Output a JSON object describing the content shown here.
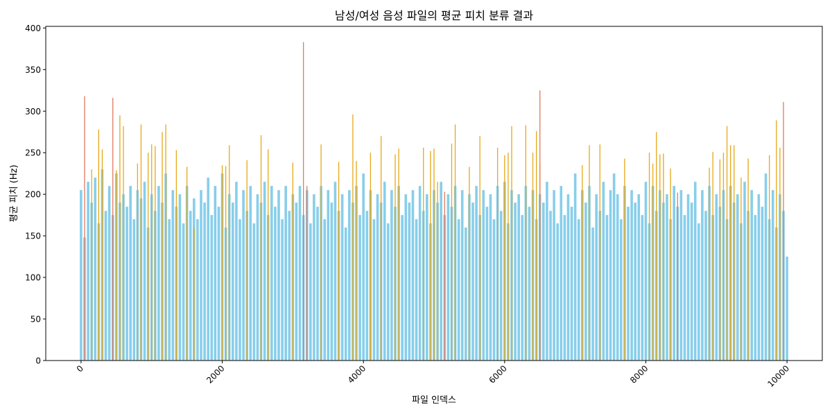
{
  "chart_data": {
    "type": "bar",
    "title": "남성/여성 음성 파일의 평균 피치 분류 결과",
    "xlabel": "파일 인덱스",
    "ylabel": "평균 피치 (Hz)",
    "xlim": [
      -500,
      10500
    ],
    "ylim": [
      0,
      402
    ],
    "x_ticks": [
      0,
      2000,
      4000,
      6000,
      8000,
      10000
    ],
    "x_tick_labels": [
      "0",
      "2000",
      "4000",
      "6000",
      "8000",
      "10000"
    ],
    "y_ticks": [
      0,
      50,
      100,
      150,
      200,
      250,
      300,
      350,
      400
    ],
    "y_tick_labels": [
      "0",
      "50",
      "100",
      "150",
      "200",
      "250",
      "300",
      "350",
      "400"
    ],
    "grid": false,
    "legend": "none",
    "series": [
      {
        "color": "#87ceeb",
        "x": [
          0,
          50,
          100,
          150,
          200,
          250,
          300,
          350,
          400,
          450,
          500,
          550,
          600,
          650,
          700,
          750,
          800,
          850,
          900,
          950,
          1000,
          1050,
          1100,
          1150,
          1200,
          1250,
          1300,
          1350,
          1400,
          1450,
          1500,
          1550,
          1600,
          1650,
          1700,
          1750,
          1800,
          1850,
          1900,
          1950,
          2000,
          2050,
          2100,
          2150,
          2200,
          2250,
          2300,
          2350,
          2400,
          2450,
          2500,
          2550,
          2600,
          2650,
          2700,
          2750,
          2800,
          2850,
          2900,
          2950,
          3000,
          3050,
          3100,
          3150,
          3200,
          3250,
          3300,
          3350,
          3400,
          3450,
          3500,
          3550,
          3600,
          3650,
          3700,
          3750,
          3800,
          3850,
          3900,
          3950,
          4000,
          4050,
          4100,
          4150,
          4200,
          4250,
          4300,
          4350,
          4400,
          4450,
          4500,
          4550,
          4600,
          4650,
          4700,
          4750,
          4800,
          4850,
          4900,
          4950,
          5000,
          5050,
          5100,
          5150,
          5200,
          5250,
          5300,
          5350,
          5400,
          5450,
          5500,
          5550,
          5600,
          5650,
          5700,
          5750,
          5800,
          5850,
          5900,
          5950,
          6000,
          6050,
          6100,
          6150,
          6200,
          6250,
          6300,
          6350,
          6400,
          6450,
          6500,
          6550,
          6600,
          6650,
          6700,
          6750,
          6800,
          6850,
          6900,
          6950,
          7000,
          7050,
          7100,
          7150,
          7200,
          7250,
          7300,
          7350,
          7400,
          7450,
          7500,
          7550,
          7600,
          7650,
          7700,
          7750,
          7800,
          7850,
          7900,
          7950,
          8000,
          8050,
          8100,
          8150,
          8200,
          8250,
          8300,
          8350,
          8400,
          8450,
          8500,
          8550,
          8600,
          8650,
          8700,
          8750,
          8800,
          8850,
          8900,
          8950,
          9000,
          9050,
          9100,
          9150,
          9200,
          9250,
          9300,
          9350,
          9400,
          9450,
          9500,
          9550,
          9600,
          9650,
          9700,
          9750,
          9800,
          9850,
          9900,
          9950,
          10000
        ],
        "values": [
          205,
          148,
          215,
          190,
          220,
          165,
          230,
          180,
          210,
          175,
          225,
          190,
          200,
          185,
          210,
          170,
          205,
          195,
          215,
          160,
          200,
          180,
          210,
          190,
          225,
          170,
          205,
          185,
          200,
          165,
          210,
          180,
          195,
          170,
          205,
          190,
          220,
          175,
          210,
          185,
          225,
          160,
          200,
          190,
          215,
          170,
          205,
          180,
          210,
          165,
          200,
          190,
          215,
          175,
          210,
          185,
          205,
          170,
          210,
          180,
          200,
          190,
          210,
          175,
          205,
          165,
          200,
          185,
          210,
          170,
          205,
          190,
          215,
          180,
          200,
          160,
          205,
          190,
          210,
          175,
          225,
          180,
          205,
          170,
          200,
          190,
          215,
          165,
          205,
          185,
          210,
          175,
          200,
          190,
          205,
          170,
          210,
          180,
          200,
          165,
          205,
          190,
          215,
          175,
          200,
          185,
          210,
          170,
          205,
          160,
          200,
          190,
          210,
          175,
          205,
          185,
          200,
          170,
          210,
          180,
          215,
          165,
          205,
          190,
          200,
          175,
          210,
          185,
          205,
          170,
          200,
          190,
          215,
          180,
          205,
          165,
          210,
          175,
          200,
          185,
          225,
          170,
          205,
          190,
          210,
          160,
          200,
          180,
          215,
          175,
          205,
          225,
          200,
          170,
          210,
          185,
          205,
          190,
          200,
          175,
          215,
          165,
          210,
          180,
          205,
          190,
          200,
          170,
          210,
          185,
          205,
          175,
          200,
          190,
          215,
          165,
          205,
          180,
          210,
          175,
          200,
          185,
          205,
          170,
          210,
          190,
          200,
          165,
          215,
          180,
          205,
          175,
          200,
          185,
          225,
          170,
          205,
          160,
          200,
          180,
          125
        ]
      },
      {
        "color": "#e6a817",
        "x": [
          150,
          250,
          300,
          500,
          550,
          600,
          800,
          850,
          950,
          1000,
          1050,
          1150,
          1200,
          1350,
          1500,
          1600,
          2000,
          2050,
          2100,
          2350,
          2550,
          2650,
          3000,
          3400,
          3650,
          3850,
          3900,
          4100,
          4250,
          4450,
          4500,
          4850,
          4950,
          5000,
          5050,
          5250,
          5300,
          5500,
          5650,
          5900,
          6000,
          6050,
          6100,
          6300,
          6400,
          6450,
          6500,
          7100,
          7200,
          7350,
          7700,
          8050,
          8100,
          8150,
          8200,
          8250,
          8350,
          8900,
          8950,
          9050,
          9100,
          9150,
          9200,
          9250,
          9350,
          9450,
          9750,
          9850,
          9900
        ],
        "values": [
          230,
          278,
          254,
          229,
          295,
          282,
          237,
          284,
          250,
          260,
          258,
          275,
          284,
          253,
          233,
          160,
          235,
          234,
          259,
          241,
          271,
          254,
          238,
          260,
          239,
          296,
          240,
          250,
          270,
          248,
          255,
          256,
          252,
          255,
          215,
          261,
          284,
          233,
          270,
          256,
          247,
          250,
          282,
          283,
          250,
          276,
          237,
          235,
          259,
          260,
          243,
          250,
          237,
          275,
          248,
          249,
          231,
          232,
          251,
          242,
          250,
          282,
          259,
          259,
          220,
          243,
          247,
          289,
          256
        ]
      },
      {
        "color": "#e07a5f",
        "x": [
          50,
          450,
          3150,
          3200,
          5150,
          6500,
          8450,
          9950
        ],
        "values": [
          318,
          316,
          383,
          210,
          203,
          325,
          202,
          311
        ]
      }
    ]
  }
}
